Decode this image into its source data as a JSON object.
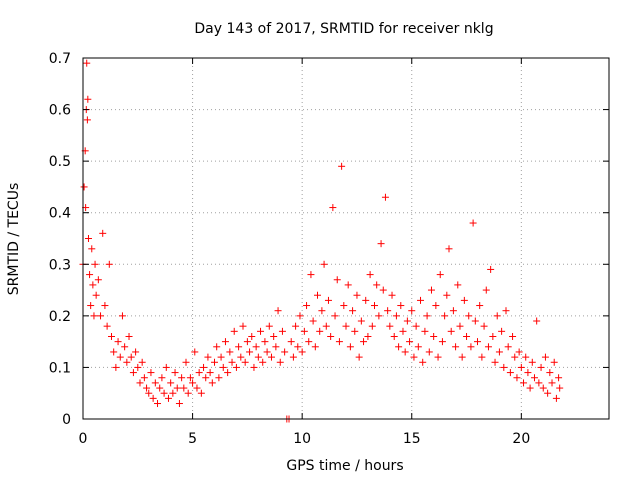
{
  "chart_data": {
    "type": "scatter",
    "title": "Day 143 of 2017, SRMTID for receiver nklg",
    "xlabel": "GPS time / hours",
    "ylabel": "SRMTID / TECUs",
    "xlim": [
      0,
      24
    ],
    "ylim": [
      0,
      0.7
    ],
    "xticks": [
      0,
      5,
      10,
      15,
      20
    ],
    "xtick_labels": [
      "0",
      "5",
      "10",
      "15",
      "20"
    ],
    "yticks": [
      0,
      0.1,
      0.2,
      0.3,
      0.4,
      0.5,
      0.6,
      0.7
    ],
    "ytick_labels": [
      "0",
      "0.1",
      "0.2",
      "0.3",
      "0.4",
      "0.5",
      "0.6",
      "0.7"
    ],
    "grid": true,
    "marker": "+",
    "series": [
      {
        "name": "SRMTID",
        "color": "#ff0000",
        "points": [
          [
            0.0,
            0.3
          ],
          [
            0.05,
            0.45
          ],
          [
            0.1,
            0.52
          ],
          [
            0.12,
            0.41
          ],
          [
            0.15,
            0.6
          ],
          [
            0.17,
            0.69
          ],
          [
            0.2,
            0.58
          ],
          [
            0.22,
            0.62
          ],
          [
            0.25,
            0.35
          ],
          [
            0.3,
            0.28
          ],
          [
            0.35,
            0.22
          ],
          [
            0.4,
            0.33
          ],
          [
            0.45,
            0.26
          ],
          [
            0.5,
            0.2
          ],
          [
            0.55,
            0.3
          ],
          [
            0.6,
            0.24
          ],
          [
            0.7,
            0.27
          ],
          [
            0.8,
            0.2
          ],
          [
            0.9,
            0.36
          ],
          [
            1.0,
            0.22
          ],
          [
            1.1,
            0.18
          ],
          [
            1.2,
            0.3
          ],
          [
            1.3,
            0.16
          ],
          [
            1.4,
            0.13
          ],
          [
            1.5,
            0.1
          ],
          [
            1.6,
            0.15
          ],
          [
            1.7,
            0.12
          ],
          [
            1.8,
            0.2
          ],
          [
            1.9,
            0.14
          ],
          [
            2.0,
            0.11
          ],
          [
            2.1,
            0.16
          ],
          [
            2.2,
            0.12
          ],
          [
            2.3,
            0.09
          ],
          [
            2.4,
            0.13
          ],
          [
            2.5,
            0.1
          ],
          [
            2.6,
            0.07
          ],
          [
            2.7,
            0.11
          ],
          [
            2.8,
            0.08
          ],
          [
            2.9,
            0.06
          ],
          [
            3.0,
            0.05
          ],
          [
            3.1,
            0.09
          ],
          [
            3.2,
            0.04
          ],
          [
            3.3,
            0.07
          ],
          [
            3.4,
            0.03
          ],
          [
            3.5,
            0.06
          ],
          [
            3.6,
            0.08
          ],
          [
            3.7,
            0.05
          ],
          [
            3.8,
            0.1
          ],
          [
            3.9,
            0.04
          ],
          [
            4.0,
            0.07
          ],
          [
            4.1,
            0.05
          ],
          [
            4.2,
            0.09
          ],
          [
            4.3,
            0.06
          ],
          [
            4.4,
            0.03
          ],
          [
            4.5,
            0.08
          ],
          [
            4.6,
            0.06
          ],
          [
            4.7,
            0.11
          ],
          [
            4.8,
            0.05
          ],
          [
            4.9,
            0.08
          ],
          [
            5.0,
            0.07
          ],
          [
            5.1,
            0.13
          ],
          [
            5.2,
            0.06
          ],
          [
            5.3,
            0.09
          ],
          [
            5.4,
            0.05
          ],
          [
            5.5,
            0.1
          ],
          [
            5.6,
            0.08
          ],
          [
            5.7,
            0.12
          ],
          [
            5.8,
            0.09
          ],
          [
            5.9,
            0.07
          ],
          [
            6.0,
            0.11
          ],
          [
            6.1,
            0.14
          ],
          [
            6.2,
            0.08
          ],
          [
            6.3,
            0.12
          ],
          [
            6.4,
            0.1
          ],
          [
            6.5,
            0.15
          ],
          [
            6.6,
            0.09
          ],
          [
            6.7,
            0.13
          ],
          [
            6.8,
            0.11
          ],
          [
            6.9,
            0.17
          ],
          [
            7.0,
            0.1
          ],
          [
            7.1,
            0.14
          ],
          [
            7.2,
            0.12
          ],
          [
            7.3,
            0.18
          ],
          [
            7.4,
            0.11
          ],
          [
            7.5,
            0.15
          ],
          [
            7.6,
            0.13
          ],
          [
            7.7,
            0.16
          ],
          [
            7.8,
            0.1
          ],
          [
            7.9,
            0.14
          ],
          [
            8.0,
            0.12
          ],
          [
            8.1,
            0.17
          ],
          [
            8.2,
            0.11
          ],
          [
            8.3,
            0.15
          ],
          [
            8.4,
            0.13
          ],
          [
            8.5,
            0.18
          ],
          [
            8.6,
            0.12
          ],
          [
            8.7,
            0.16
          ],
          [
            8.8,
            0.14
          ],
          [
            8.9,
            0.21
          ],
          [
            9.0,
            0.11
          ],
          [
            9.1,
            0.17
          ],
          [
            9.2,
            0.13
          ],
          [
            9.3,
            0.0
          ],
          [
            9.4,
            0.0
          ],
          [
            9.5,
            0.15
          ],
          [
            9.6,
            0.12
          ],
          [
            9.7,
            0.18
          ],
          [
            9.8,
            0.14
          ],
          [
            9.9,
            0.2
          ],
          [
            10.0,
            0.13
          ],
          [
            10.1,
            0.17
          ],
          [
            10.2,
            0.22
          ],
          [
            10.3,
            0.15
          ],
          [
            10.4,
            0.28
          ],
          [
            10.5,
            0.19
          ],
          [
            10.6,
            0.14
          ],
          [
            10.7,
            0.24
          ],
          [
            10.8,
            0.17
          ],
          [
            10.9,
            0.21
          ],
          [
            11.0,
            0.3
          ],
          [
            11.1,
            0.18
          ],
          [
            11.2,
            0.23
          ],
          [
            11.3,
            0.16
          ],
          [
            11.4,
            0.41
          ],
          [
            11.5,
            0.2
          ],
          [
            11.6,
            0.27
          ],
          [
            11.7,
            0.15
          ],
          [
            11.8,
            0.49
          ],
          [
            11.9,
            0.22
          ],
          [
            12.0,
            0.18
          ],
          [
            12.1,
            0.26
          ],
          [
            12.2,
            0.14
          ],
          [
            12.3,
            0.21
          ],
          [
            12.4,
            0.17
          ],
          [
            12.5,
            0.24
          ],
          [
            12.6,
            0.12
          ],
          [
            12.7,
            0.19
          ],
          [
            12.8,
            0.15
          ],
          [
            12.9,
            0.23
          ],
          [
            13.0,
            0.16
          ],
          [
            13.1,
            0.28
          ],
          [
            13.2,
            0.18
          ],
          [
            13.3,
            0.22
          ],
          [
            13.4,
            0.26
          ],
          [
            13.5,
            0.2
          ],
          [
            13.6,
            0.34
          ],
          [
            13.7,
            0.25
          ],
          [
            13.8,
            0.43
          ],
          [
            13.9,
            0.21
          ],
          [
            14.0,
            0.18
          ],
          [
            14.1,
            0.24
          ],
          [
            14.2,
            0.16
          ],
          [
            14.3,
            0.2
          ],
          [
            14.4,
            0.14
          ],
          [
            14.5,
            0.22
          ],
          [
            14.6,
            0.17
          ],
          [
            14.7,
            0.13
          ],
          [
            14.8,
            0.19
          ],
          [
            14.9,
            0.15
          ],
          [
            15.0,
            0.21
          ],
          [
            15.1,
            0.12
          ],
          [
            15.2,
            0.18
          ],
          [
            15.3,
            0.14
          ],
          [
            15.4,
            0.23
          ],
          [
            15.5,
            0.11
          ],
          [
            15.6,
            0.17
          ],
          [
            15.7,
            0.2
          ],
          [
            15.8,
            0.13
          ],
          [
            15.9,
            0.25
          ],
          [
            16.0,
            0.16
          ],
          [
            16.1,
            0.22
          ],
          [
            16.2,
            0.12
          ],
          [
            16.3,
            0.28
          ],
          [
            16.4,
            0.15
          ],
          [
            16.5,
            0.2
          ],
          [
            16.6,
            0.24
          ],
          [
            16.7,
            0.33
          ],
          [
            16.8,
            0.17
          ],
          [
            16.9,
            0.21
          ],
          [
            17.0,
            0.14
          ],
          [
            17.1,
            0.26
          ],
          [
            17.2,
            0.18
          ],
          [
            17.3,
            0.12
          ],
          [
            17.4,
            0.23
          ],
          [
            17.5,
            0.16
          ],
          [
            17.6,
            0.2
          ],
          [
            17.7,
            0.14
          ],
          [
            17.8,
            0.38
          ],
          [
            17.9,
            0.19
          ],
          [
            18.0,
            0.15
          ],
          [
            18.1,
            0.22
          ],
          [
            18.2,
            0.12
          ],
          [
            18.3,
            0.18
          ],
          [
            18.4,
            0.25
          ],
          [
            18.5,
            0.14
          ],
          [
            18.6,
            0.29
          ],
          [
            18.7,
            0.16
          ],
          [
            18.8,
            0.11
          ],
          [
            18.9,
            0.2
          ],
          [
            19.0,
            0.13
          ],
          [
            19.1,
            0.17
          ],
          [
            19.2,
            0.1
          ],
          [
            19.3,
            0.21
          ],
          [
            19.4,
            0.14
          ],
          [
            19.5,
            0.09
          ],
          [
            19.6,
            0.16
          ],
          [
            19.7,
            0.12
          ],
          [
            19.8,
            0.08
          ],
          [
            19.9,
            0.13
          ],
          [
            20.0,
            0.1
          ],
          [
            20.1,
            0.07
          ],
          [
            20.2,
            0.12
          ],
          [
            20.3,
            0.09
          ],
          [
            20.4,
            0.06
          ],
          [
            20.5,
            0.11
          ],
          [
            20.6,
            0.08
          ],
          [
            20.7,
            0.19
          ],
          [
            20.8,
            0.07
          ],
          [
            20.9,
            0.1
          ],
          [
            21.0,
            0.06
          ],
          [
            21.1,
            0.12
          ],
          [
            21.2,
            0.05
          ],
          [
            21.3,
            0.09
          ],
          [
            21.4,
            0.07
          ],
          [
            21.5,
            0.11
          ],
          [
            21.6,
            0.04
          ],
          [
            21.7,
            0.08
          ],
          [
            21.75,
            0.06
          ]
        ]
      }
    ]
  }
}
